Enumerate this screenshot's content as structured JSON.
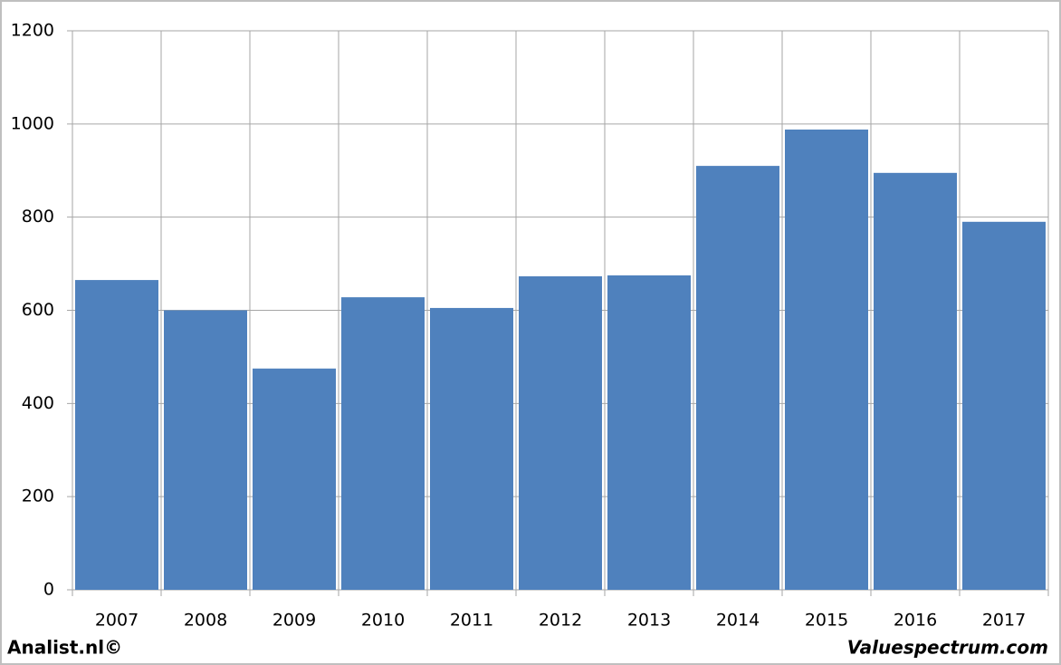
{
  "chart_data": {
    "type": "bar",
    "categories": [
      "2007",
      "2008",
      "2009",
      "2010",
      "2011",
      "2012",
      "2013",
      "2014",
      "2015",
      "2016",
      "2017"
    ],
    "values": [
      665,
      600,
      475,
      628,
      605,
      673,
      675,
      910,
      988,
      895,
      790
    ],
    "color": "#4f81bd",
    "ylim": [
      0,
      1200
    ],
    "yticks": [
      0,
      200,
      400,
      600,
      800,
      1000,
      1200
    ],
    "grid": true
  },
  "footer_left": "Analist.nl©",
  "footer_right": "Valuespectrum.com"
}
